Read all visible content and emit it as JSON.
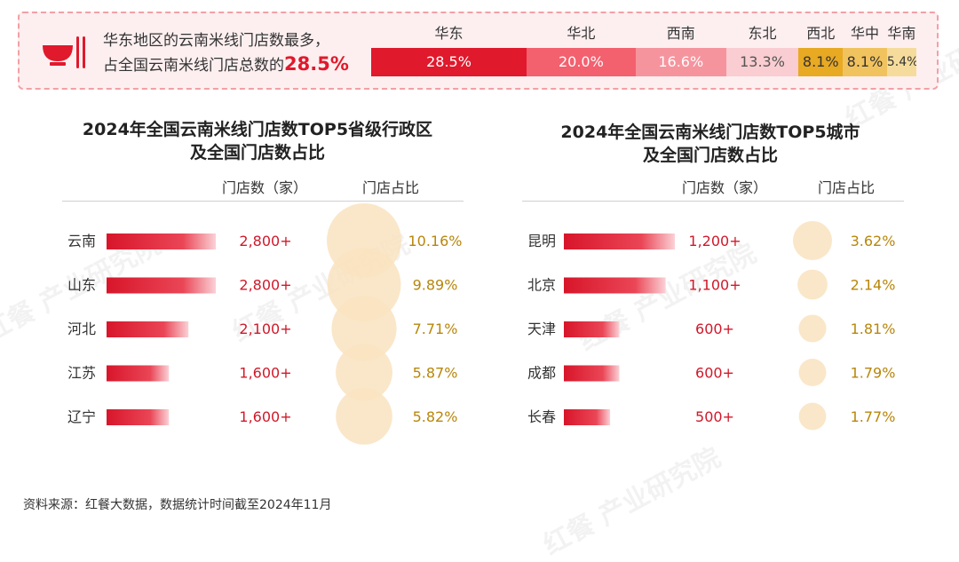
{
  "banner": {
    "text_line1": "华东地区的云南米线门店数最多，",
    "text_line2_prefix": "占全国云南米线门店总数的",
    "text_highlight": "28.5%",
    "icon": "noodle-bowl-icon"
  },
  "chart_data": [
    {
      "type": "bar",
      "orientation": "stacked-horizontal",
      "title": "",
      "categories": [
        "华东",
        "华北",
        "西南",
        "东北",
        "西北",
        "华中",
        "华南"
      ],
      "values": [
        28.5,
        20.0,
        16.6,
        13.3,
        8.1,
        8.1,
        5.4
      ],
      "value_labels": [
        "28.5%",
        "20.0%",
        "16.6%",
        "13.3%",
        "8.1%",
        "8.1%",
        "5.4%"
      ],
      "colors": [
        "#e0192c",
        "#f3606e",
        "#f6949d",
        "#f9cdd1",
        "#e8a923",
        "#f1c35f",
        "#f6dc9c"
      ],
      "label_colors": [
        "#ffffff",
        "#ffffff",
        "#ffffff",
        "#555555",
        "#333333",
        "#333333",
        "#333333"
      ]
    },
    {
      "type": "bar",
      "title_line1": "2024年全国云南米线门店数TOP5省级行政区",
      "title_line2": "及全国门店数占比",
      "col_count_label": "门店数（家）",
      "col_share_label": "门店占比",
      "categories": [
        "云南",
        "山东",
        "河北",
        "江苏",
        "辽宁"
      ],
      "values": [
        2800,
        2800,
        2100,
        1600,
        1600
      ],
      "value_labels": [
        "2,800+",
        "2,800+",
        "2,100+",
        "1,600+",
        "1,600+"
      ],
      "share": [
        10.16,
        9.89,
        7.71,
        5.87,
        5.82
      ],
      "share_labels": [
        "10.16%",
        "9.89%",
        "7.71%",
        "5.87%",
        "5.82%"
      ]
    },
    {
      "type": "bar",
      "title_line1": "2024年全国云南米线门店数TOP5城市",
      "title_line2": "及全国门店数占比",
      "col_count_label": "门店数（家）",
      "col_share_label": "门店占比",
      "categories": [
        "昆明",
        "北京",
        "天津",
        "成都",
        "长春"
      ],
      "values": [
        1200,
        1100,
        600,
        600,
        500
      ],
      "value_labels": [
        "1,200+",
        "1,100+",
        "600+",
        "600+",
        "500+"
      ],
      "share": [
        3.62,
        2.14,
        1.81,
        1.79,
        1.77
      ],
      "share_labels": [
        "3.62%",
        "2.14%",
        "1.81%",
        "1.79%",
        "1.77%"
      ]
    }
  ],
  "colors": {
    "bar_red": "#e0192c",
    "value_red": "#d0192a",
    "share_gold": "#b8860b",
    "bubble": "#f9e3c0"
  },
  "footer": {
    "source": "资料来源：红餐大数据，数据统计时间截至2024年11月"
  },
  "watermark": {
    "text": "红餐 产业研究院"
  }
}
